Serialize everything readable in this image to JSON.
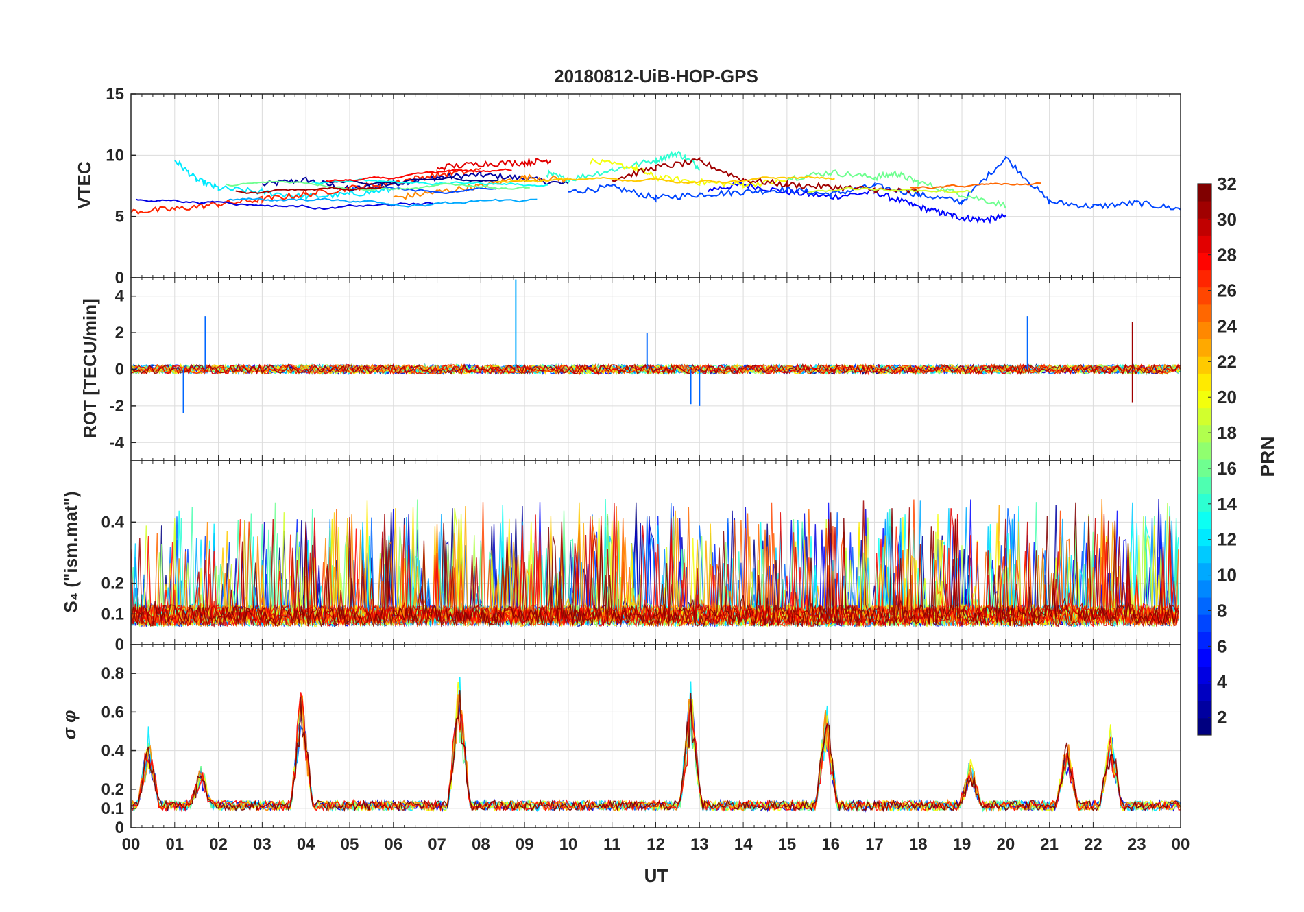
{
  "chart_data": [
    {
      "type": "line",
      "title": "20180812-UiB-HOP-GPS",
      "ylabel": "VTEC",
      "ylim": [
        0,
        15
      ],
      "yticks": [
        0,
        5,
        10,
        15
      ],
      "x_range_hours": [
        0,
        24
      ],
      "grid": true,
      "series_note": "32 PRN traces, colored by PRN",
      "series": [
        {
          "name": "PRN 2",
          "x": [
            3,
            4,
            5,
            6,
            7,
            8,
            9,
            10
          ],
          "values": [
            7.6,
            8.0,
            7.2,
            7.7,
            8.2,
            8.4,
            8.1,
            7.6
          ]
        },
        {
          "name": "PRN 5",
          "x": [
            13.2,
            14,
            15,
            16,
            17,
            17.8,
            18.5,
            19,
            19.5,
            20
          ],
          "values": [
            7.2,
            7.6,
            7.0,
            6.6,
            7.0,
            6.0,
            5.3,
            4.9,
            4.7,
            5.0
          ]
        },
        {
          "name": "PRN 7",
          "x": [
            10,
            11,
            12,
            13,
            14,
            15,
            16,
            17,
            18,
            19,
            20,
            21,
            22,
            23,
            24
          ],
          "values": [
            7.0,
            7.4,
            6.5,
            6.8,
            7.0,
            7.2,
            6.8,
            7.5,
            6.8,
            6.2,
            9.8,
            6.2,
            5.8,
            6.1,
            5.6
          ]
        },
        {
          "name": "PRN 12",
          "x": [
            1,
            1.5,
            2,
            3,
            4,
            5,
            6
          ],
          "values": [
            9.6,
            8.0,
            7.3,
            7.0,
            6.6,
            6.8,
            7.2
          ]
        },
        {
          "name": "PRN 14",
          "x": [
            9.5,
            10,
            11,
            12,
            12.5,
            13
          ],
          "values": [
            8.5,
            8.0,
            8.8,
            9.6,
            10.2,
            9.0
          ]
        },
        {
          "name": "PRN 16",
          "x": [
            15,
            16,
            17,
            17.5,
            18,
            19,
            20
          ],
          "values": [
            8.1,
            8.6,
            8.2,
            8.5,
            7.8,
            6.8,
            5.9
          ]
        },
        {
          "name": "PRN 20",
          "x": [
            10.5,
            11.5,
            12,
            13,
            14,
            15
          ],
          "values": [
            9.5,
            9.0,
            8.2,
            7.8,
            7.6,
            7.9
          ]
        },
        {
          "name": "PRN 24",
          "x": [
            6,
            7,
            8,
            9,
            10
          ],
          "values": [
            6.5,
            7.0,
            7.5,
            8.2,
            8.0
          ]
        },
        {
          "name": "PRN 27",
          "x": [
            0,
            1,
            2,
            3,
            4,
            5,
            6,
            7,
            8
          ],
          "values": [
            5.4,
            5.6,
            6.0,
            6.4,
            6.8,
            7.3,
            7.8,
            8.4,
            8.8
          ]
        },
        {
          "name": "PRN 29",
          "x": [
            7,
            8,
            9,
            9.6
          ],
          "values": [
            9.0,
            9.3,
            9.4,
            9.6
          ]
        },
        {
          "name": "PRN 31",
          "x": [
            11,
            12,
            13,
            14,
            15,
            16,
            17,
            18
          ],
          "values": [
            8.0,
            9.0,
            9.5,
            8.0,
            7.6,
            7.4,
            7.2,
            7.0
          ]
        }
      ]
    },
    {
      "type": "line",
      "ylabel": "ROT [TECU/min]",
      "ylim": [
        -5,
        5
      ],
      "yticks": [
        -4,
        -2,
        0,
        2,
        4
      ],
      "x_range_hours": [
        0,
        24
      ],
      "grid": true,
      "series_note": "32 PRN traces centered near 0 with spikes",
      "spikes": [
        {
          "x": 1.2,
          "value": -2.4
        },
        {
          "x": 1.7,
          "value": 2.9
        },
        {
          "x": 8.8,
          "value": 4.9
        },
        {
          "x": 11.8,
          "value": 2.0
        },
        {
          "x": 12.8,
          "value": -1.9
        },
        {
          "x": 13.0,
          "value": -2.0
        },
        {
          "x": 20.5,
          "value": 2.9
        },
        {
          "x": 22.9,
          "value": 2.6
        },
        {
          "x": 22.9,
          "value": -1.8
        }
      ]
    },
    {
      "type": "line",
      "ylabel": "S₄ (\"ism.mat\")",
      "ylim": [
        0,
        0.6
      ],
      "yticks": [
        0,
        0.1,
        0.2,
        0.4
      ],
      "ytick_labels": [
        "0",
        "0.1",
        "0.2",
        "0.4"
      ],
      "x_range_hours": [
        0,
        24
      ],
      "grid": true,
      "series_note": "32 PRN traces, baseline ~0.05-0.15 with spikes up to >0.6"
    },
    {
      "type": "line",
      "ylabel": "σ φ",
      "ylim": [
        0,
        0.95
      ],
      "yticks": [
        0,
        0.1,
        0.2,
        0.4,
        0.6,
        0.8
      ],
      "ytick_labels": [
        "0",
        "0.1",
        "0.2",
        "0.4",
        "0.6",
        "0.8"
      ],
      "xlabel": "UT",
      "xticks": [
        "00",
        "01",
        "02",
        "03",
        "04",
        "05",
        "06",
        "07",
        "08",
        "09",
        "10",
        "11",
        "12",
        "13",
        "14",
        "15",
        "16",
        "17",
        "18",
        "19",
        "20",
        "21",
        "22",
        "23",
        "00"
      ],
      "x_range_hours": [
        0,
        24
      ],
      "grid": true,
      "peaks": [
        {
          "x": 0.4,
          "value": 0.52
        },
        {
          "x": 1.6,
          "value": 0.33
        },
        {
          "x": 3.9,
          "value": 0.78
        },
        {
          "x": 7.5,
          "value": 0.86
        },
        {
          "x": 12.8,
          "value": 0.79
        },
        {
          "x": 15.9,
          "value": 0.68
        },
        {
          "x": 19.2,
          "value": 0.35
        },
        {
          "x": 21.4,
          "value": 0.48
        },
        {
          "x": 22.4,
          "value": 0.55
        }
      ]
    }
  ],
  "colorbar": {
    "label": "PRN",
    "range": [
      1,
      32
    ],
    "ticks": [
      "2",
      "4",
      "6",
      "8",
      "10",
      "12",
      "14",
      "16",
      "18",
      "20",
      "22",
      "24",
      "26",
      "28",
      "30",
      "32"
    ],
    "colormap": "jet"
  }
}
